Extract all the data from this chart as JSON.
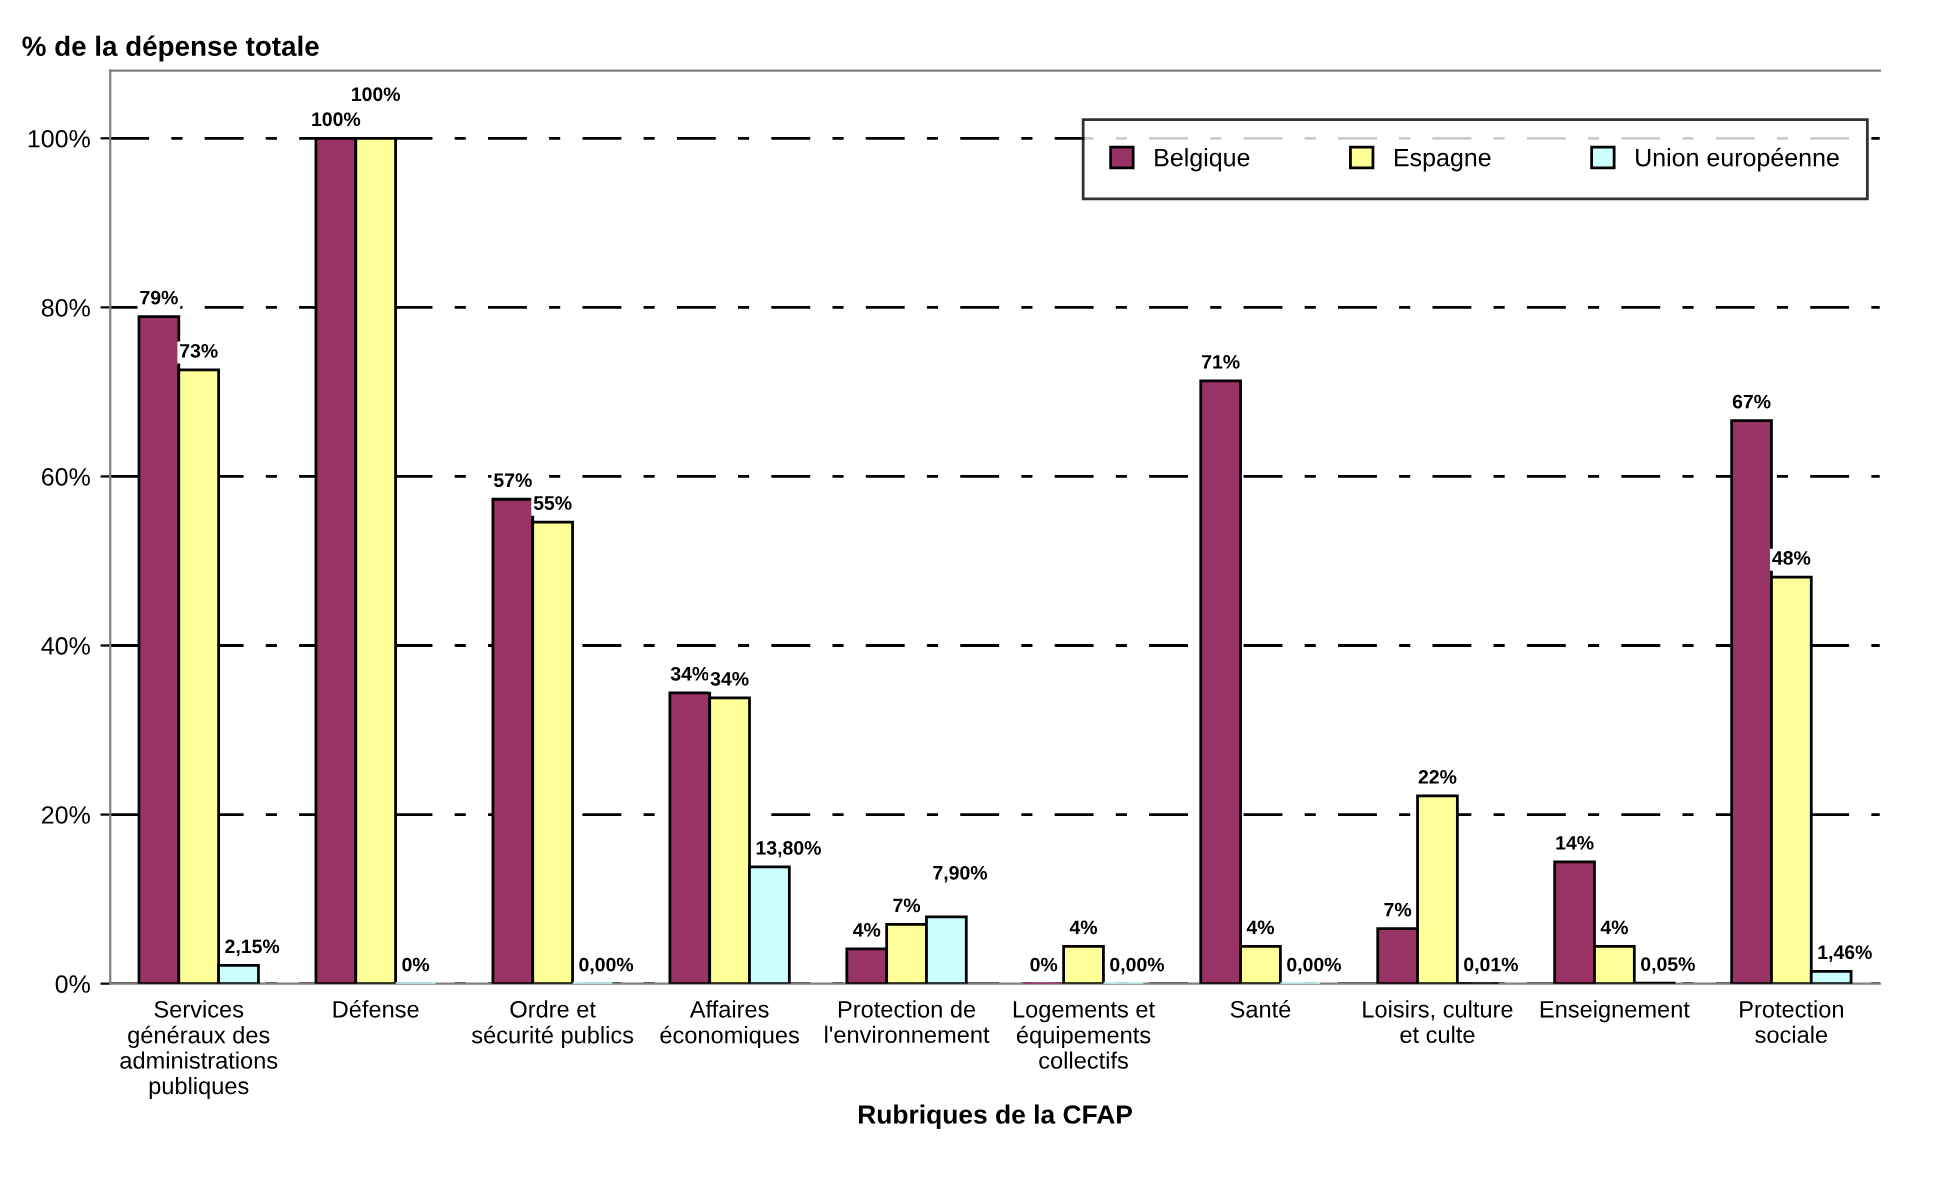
{
  "chart_data": {
    "type": "bar",
    "ylabel": "% de la dépense totale",
    "xlabel": "Rubriques de la CFAP",
    "categories": [
      "Services\ngénéraux des\nadministrations\npubliques",
      "Défense",
      "Ordre et\nsécurité publics",
      "Affaires\néconomiques",
      "Protection de\nl'environnement",
      "Logements et\néquipements\ncollectifs",
      "Santé",
      "Loisirs, culture\net culte",
      "Enseignement",
      "Protection\nsociale"
    ],
    "series": [
      {
        "name": "Belgique",
        "color": "#993366",
        "values": [
          78.9,
          100,
          57.3,
          34.4,
          4.1,
          0,
          71.3,
          6.5,
          14.4,
          66.6
        ],
        "value_labels": [
          "79%",
          "100%",
          "57%",
          "34%",
          "4%",
          "0%",
          "71%",
          "7%",
          "14%",
          "67%"
        ]
      },
      {
        "name": "Espagne",
        "color": "#ffff99",
        "values": [
          72.6,
          100,
          54.6,
          33.8,
          7.0,
          4.4,
          4.4,
          22.2,
          4.4,
          48.1
        ],
        "value_labels": [
          "73%",
          "100%",
          "55%",
          "34%",
          "7%",
          "4%",
          "4%",
          "22%",
          "4%",
          "48%"
        ]
      },
      {
        "name": "Union européenne",
        "color": "#ccffff",
        "values": [
          2.15,
          0,
          0.0,
          13.8,
          7.9,
          0.0,
          0.0,
          0.01,
          0.05,
          1.46
        ],
        "value_labels": [
          "2,15%",
          "0%",
          "0,00%",
          "13,80%",
          "7,90%",
          "0,00%",
          "0,00%",
          "0,01%",
          "0,05%",
          "1,46%"
        ]
      }
    ],
    "ylim": [
      0,
      108
    ],
    "yticks": [
      {
        "value": 0,
        "label": "0%"
      },
      {
        "value": 20,
        "label": "20%"
      },
      {
        "value": 40,
        "label": "40%"
      },
      {
        "value": 60,
        "label": "60%"
      },
      {
        "value": 80,
        "label": "80%"
      },
      {
        "value": 100,
        "label": "100%"
      }
    ],
    "grid": "y",
    "legend": "top right"
  }
}
